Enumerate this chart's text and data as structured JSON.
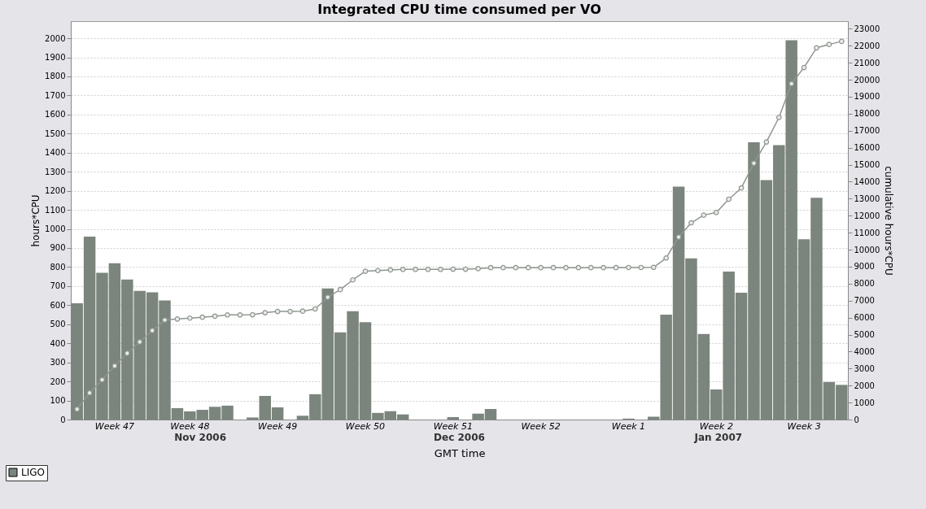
{
  "chart_data": {
    "type": "bar",
    "title": "Integrated CPU time consumed per VO",
    "xlabel": "GMT time",
    "ylabel": "hours*CPU",
    "y2label": "cumulative hours*CPU",
    "categories": [
      null,
      null,
      null,
      "Week 47",
      null,
      null,
      null,
      null,
      null,
      "Week 48",
      null,
      null,
      null,
      null,
      null,
      null,
      "Week 49",
      null,
      null,
      null,
      null,
      null,
      null,
      "Week 50",
      null,
      null,
      null,
      null,
      null,
      null,
      "Week 51",
      null,
      null,
      null,
      null,
      null,
      null,
      "Week 52",
      null,
      null,
      null,
      null,
      null,
      null,
      "Week 1",
      null,
      null,
      null,
      null,
      null,
      null,
      "Week 2",
      null,
      null,
      null,
      null,
      null,
      null,
      "Week 3",
      null,
      null,
      null
    ],
    "series": [
      {
        "name": "LIGO",
        "color": "#7b857d",
        "values": [
          610,
          960,
          770,
          820,
          735,
          675,
          668,
          625,
          60,
          43,
          51,
          67,
          73,
          0,
          11,
          124,
          64,
          0,
          20,
          133,
          688,
          457,
          568,
          511,
          35,
          44,
          27,
          0,
          0,
          0,
          13,
          0,
          31,
          55,
          null,
          0,
          0,
          0,
          0,
          0,
          0,
          0,
          0,
          null,
          5,
          0,
          15,
          550,
          1222,
          846,
          449,
          158,
          776,
          665,
          1455,
          1256,
          1440,
          1990,
          946,
          1163,
          197,
          182
        ]
      },
      {
        "type": "line",
        "axis": "y2",
        "color": "#8f958f",
        "marker": "circle",
        "values": [
          610,
          1570,
          2340,
          3160,
          3900,
          4570,
          5240,
          5860,
          5920,
          5970,
          6020,
          6080,
          6160,
          6160,
          6170,
          6290,
          6360,
          6360,
          6380,
          6510,
          7200,
          7650,
          8220,
          8730,
          8770,
          8810,
          8840,
          8840,
          8840,
          8840,
          8850,
          8850,
          8880,
          8940,
          8940,
          8940,
          8940,
          8940,
          8940,
          8940,
          8940,
          8940,
          8940,
          8940,
          8950,
          8950,
          8960,
          9510,
          10740,
          11580,
          12030,
          12190,
          12970,
          13630,
          15090,
          16340,
          17780,
          19770,
          20720,
          21880,
          22080,
          22260
        ]
      }
    ],
    "ylim": [
      0,
      2090
    ],
    "yticks": [
      0,
      100,
      200,
      300,
      400,
      500,
      600,
      700,
      800,
      900,
      1000,
      1100,
      1200,
      1300,
      1400,
      1500,
      1600,
      1700,
      1800,
      1900,
      2000
    ],
    "y2lim": [
      0,
      23450
    ],
    "y2ticks": [
      0,
      1000,
      2000,
      3000,
      4000,
      5000,
      6000,
      7000,
      8000,
      9000,
      10000,
      11000,
      12000,
      13000,
      14000,
      15000,
      16000,
      17000,
      18000,
      19000,
      20000,
      21000,
      22000,
      23000
    ],
    "grid": "y",
    "legend": "bottom left",
    "annotations": [
      "Nov 2006",
      "Dec 2006",
      "Jan 2007"
    ]
  }
}
